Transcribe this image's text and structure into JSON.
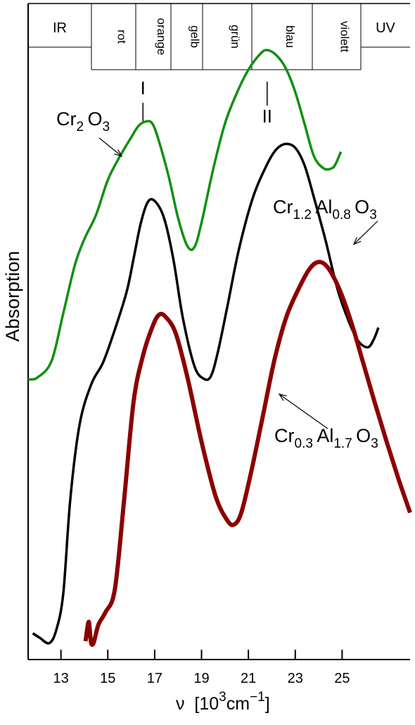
{
  "chart_data": {
    "type": "line",
    "xlim": [
      11.6,
      27.9
    ],
    "ylim": [
      0,
      1
    ],
    "ylabel": "Absorption",
    "xlabel": {
      "symbol": "ν",
      "unit_open": "[10",
      "unit_exp": "3",
      "unit_base": "cm",
      "unit_exp2": "−1",
      "unit_close": "]"
    },
    "xticks": [
      13,
      15,
      17,
      19,
      21,
      23,
      25
    ],
    "spectrum_bands": [
      "IR",
      "rot",
      "orange",
      "gelb",
      "grün",
      "blau",
      "violett",
      "UV"
    ],
    "peak_markers": [
      {
        "label": "I",
        "x": 16.5
      },
      {
        "label": "II",
        "x": 21.8
      }
    ],
    "series": [
      {
        "formula": [
          {
            "text": "Cr",
            "sub": "2"
          },
          {
            "text": "O",
            "sub": "3"
          }
        ],
        "color": "#119011",
        "x": [
          11.6,
          12.0,
          12.6,
          13.1,
          13.6,
          14.0,
          14.5,
          15.0,
          15.5,
          16.0,
          16.3,
          16.6,
          16.9,
          17.2,
          17.6,
          18.0,
          18.4,
          18.7,
          19.0,
          19.5,
          20.0,
          20.5,
          21.0,
          21.5,
          21.8,
          22.2,
          22.6,
          23.0,
          23.4,
          23.8,
          24.2,
          24.5,
          24.7,
          24.95
        ],
        "y": [
          0.427,
          0.43,
          0.455,
          0.528,
          0.602,
          0.641,
          0.678,
          0.731,
          0.766,
          0.796,
          0.813,
          0.82,
          0.817,
          0.788,
          0.736,
          0.673,
          0.63,
          0.629,
          0.666,
          0.748,
          0.817,
          0.863,
          0.899,
          0.923,
          0.929,
          0.921,
          0.901,
          0.865,
          0.816,
          0.767,
          0.749,
          0.748,
          0.754,
          0.774
        ]
      },
      {
        "formula": [
          {
            "text": "Cr",
            "sub": "1.2"
          },
          {
            "text": "Al",
            "sub": "0.8"
          },
          {
            "text": "O",
            "sub": "3"
          }
        ],
        "color": "#000000",
        "x": [
          11.8,
          12.1,
          12.5,
          12.8,
          13.1,
          13.4,
          13.8,
          14.3,
          14.8,
          15.3,
          15.8,
          16.1,
          16.4,
          16.7,
          17.0,
          17.4,
          17.8,
          18.2,
          18.7,
          19.1,
          19.4,
          19.7,
          20.1,
          20.6,
          21.2,
          21.8,
          22.2,
          22.6,
          23.0,
          23.4,
          23.8,
          24.3,
          24.8,
          25.3,
          25.7,
          26.1,
          26.35,
          26.55
        ],
        "y": [
          0.04,
          0.033,
          0.025,
          0.045,
          0.101,
          0.245,
          0.359,
          0.42,
          0.453,
          0.503,
          0.56,
          0.611,
          0.664,
          0.697,
          0.699,
          0.673,
          0.61,
          0.521,
          0.447,
          0.428,
          0.432,
          0.469,
          0.538,
          0.626,
          0.705,
          0.755,
          0.778,
          0.786,
          0.78,
          0.753,
          0.704,
          0.638,
          0.565,
          0.514,
          0.485,
          0.476,
          0.488,
          0.506
        ]
      },
      {
        "formula": [
          {
            "text": "Cr",
            "sub": "0.3"
          },
          {
            "text": "Al",
            "sub": "1.7"
          },
          {
            "text": "O",
            "sub": "3"
          }
        ],
        "color": "#8b0000",
        "x": [
          14.05,
          14.15,
          14.2,
          14.25,
          14.3,
          14.4,
          14.6,
          14.9,
          15.3,
          15.7,
          16.1,
          16.5,
          16.9,
          17.2,
          17.5,
          17.9,
          18.4,
          19.0,
          19.6,
          20.1,
          20.4,
          20.7,
          21.1,
          21.6,
          22.1,
          22.6,
          23.1,
          23.6,
          24.0,
          24.4,
          24.9,
          25.4,
          25.9,
          26.4,
          26.9,
          27.4,
          27.9
        ],
        "y": [
          0.028,
          0.053,
          0.056,
          0.037,
          0.024,
          0.026,
          0.053,
          0.072,
          0.107,
          0.245,
          0.393,
          0.463,
          0.507,
          0.526,
          0.521,
          0.497,
          0.43,
          0.332,
          0.249,
          0.212,
          0.206,
          0.224,
          0.283,
          0.368,
          0.455,
          0.52,
          0.562,
          0.595,
          0.606,
          0.597,
          0.563,
          0.513,
          0.452,
          0.391,
          0.332,
          0.276,
          0.224
        ]
      }
    ]
  }
}
